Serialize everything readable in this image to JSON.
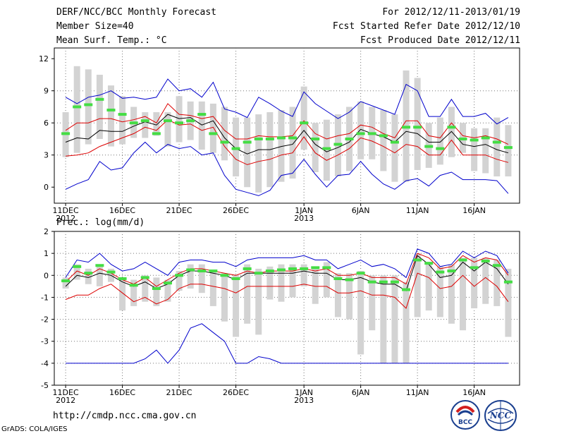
{
  "header": {
    "title": "DERF/NCC/BCC Monthly Forecast",
    "member": "Member Size=40",
    "variable": "Mean Surf. Temp.: °C",
    "period": "For 2012/12/11-2013/01/19",
    "started": "Fcst Started Refer Date 2012/12/10",
    "produced": "Fcst Produced Date 2012/12/11"
  },
  "precip_label": "Prec.: log(mm/d)",
  "footer": {
    "url": "http://cmdp.ncc.cma.gov.cn",
    "credit": "GrADS: COLA/IGES"
  },
  "logos": {
    "bcc": "BCC",
    "ncc": "NCC"
  },
  "colors": {
    "box": "#d3d3d3",
    "green": "#44dd44",
    "blue": "#0000cc",
    "red": "#dd0000",
    "mean": "#000000",
    "grid": "#777777"
  },
  "chart_data": [
    {
      "type": "box",
      "title": "Mean Surf. Temp.: °C",
      "ylim": [
        -1.5,
        13
      ],
      "yticks": [
        0,
        3,
        6,
        9,
        12
      ],
      "xticks": [
        {
          "day": 1,
          "label": "11DEC",
          "sub": "2012"
        },
        {
          "day": 6,
          "label": "16DEC",
          "sub": ""
        },
        {
          "day": 11,
          "label": "21DEC",
          "sub": ""
        },
        {
          "day": 16,
          "label": "26DEC",
          "sub": ""
        },
        {
          "day": 22,
          "label": "1JAN",
          "sub": "2013"
        },
        {
          "day": 27,
          "label": "6JAN",
          "sub": ""
        },
        {
          "day": 32,
          "label": "11JAN",
          "sub": ""
        },
        {
          "day": 37,
          "label": "16JAN",
          "sub": ""
        }
      ],
      "box_low": [
        2.8,
        3.2,
        4.0,
        4.5,
        3.8,
        4.0,
        4.6,
        4.6,
        4.8,
        3.8,
        4.2,
        4.4,
        3.5,
        3.2,
        2.5,
        1.0,
        0.0,
        -0.5,
        0.0,
        0.5,
        0.8,
        3.5,
        1.4,
        0.6,
        1.0,
        1.5,
        2.6,
        2.6,
        1.5,
        0.5,
        0.5,
        1.6,
        1.8,
        2.1,
        2.8,
        3.2,
        1.5,
        1.3,
        1.0,
        1.0
      ],
      "box_high": [
        7.0,
        11.3,
        11.0,
        10.5,
        9.5,
        8.5,
        7.5,
        7.0,
        7.0,
        7.0,
        8.5,
        8.0,
        8.0,
        7.8,
        7.5,
        6.5,
        6.5,
        6.8,
        7.0,
        7.2,
        7.5,
        9.4,
        6.0,
        6.3,
        6.8,
        7.5,
        8.0,
        7.5,
        7.2,
        6.8,
        10.9,
        10.2,
        6.0,
        6.5,
        7.5,
        6.0,
        5.5,
        5.5,
        6.5,
        5.8
      ],
      "green": [
        5.0,
        7.5,
        7.7,
        8.2,
        7.2,
        6.8,
        6.0,
        6.2,
        5.0,
        6.2,
        6.0,
        6.2,
        6.8,
        5.0,
        4.2,
        3.6,
        4.2,
        4.5,
        4.5,
        4.6,
        4.6,
        6.0,
        4.5,
        3.6,
        4.0,
        4.5,
        5.0,
        5.0,
        4.8,
        4.2,
        5.6,
        5.6,
        3.8,
        3.6,
        5.6,
        4.5,
        4.4,
        4.6,
        4.2,
        3.7
      ],
      "max": [
        8.4,
        7.8,
        8.4,
        8.6,
        9.0,
        8.3,
        8.4,
        8.2,
        8.4,
        10.1,
        9.0,
        9.2,
        8.4,
        9.8,
        7.3,
        7.0,
        6.5,
        8.4,
        7.8,
        7.1,
        6.6,
        8.9,
        7.8,
        7.1,
        6.4,
        7.0,
        8.0,
        7.6,
        7.2,
        6.8,
        9.6,
        9.0,
        6.6,
        6.6,
        8.2,
        6.6,
        6.6,
        6.9,
        5.9,
        6.5
      ],
      "upper": [
        5.3,
        6.0,
        6.0,
        6.4,
        6.4,
        6.1,
        6.3,
        6.6,
        6.0,
        7.8,
        6.8,
        6.7,
        6.4,
        6.6,
        5.3,
        4.5,
        4.5,
        4.8,
        4.7,
        4.7,
        4.8,
        6.2,
        5.0,
        4.5,
        4.8,
        5.0,
        5.8,
        5.6,
        5.0,
        4.6,
        6.2,
        6.2,
        4.8,
        4.6,
        6.0,
        4.8,
        4.6,
        4.8,
        4.5,
        4.0
      ],
      "mean": [
        4.2,
        4.6,
        4.5,
        5.3,
        5.2,
        5.2,
        5.7,
        6.1,
        5.8,
        6.8,
        6.4,
        6.5,
        5.8,
        6.2,
        4.6,
        3.6,
        3.1,
        3.5,
        3.5,
        3.8,
        4.0,
        5.3,
        4.0,
        3.3,
        3.7,
        4.2,
        5.4,
        5.0,
        4.7,
        4.2,
        5.2,
        5.0,
        4.2,
        4.2,
        5.2,
        4.0,
        3.8,
        4.0,
        3.5,
        3.2
      ],
      "lower": [
        2.9,
        3.0,
        3.2,
        3.8,
        4.2,
        4.6,
        5.0,
        5.6,
        5.3,
        6.3,
        5.8,
        5.9,
        5.3,
        5.6,
        3.8,
        2.6,
        2.1,
        2.4,
        2.6,
        3.0,
        3.2,
        4.7,
        3.2,
        2.5,
        3.0,
        3.6,
        4.6,
        4.3,
        3.8,
        3.2,
        4.0,
        3.8,
        3.0,
        3.0,
        4.4,
        3.0,
        3.0,
        3.0,
        2.6,
        2.3
      ],
      "min": [
        -0.2,
        0.3,
        0.7,
        2.4,
        1.6,
        1.8,
        3.2,
        4.2,
        3.2,
        4.0,
        3.6,
        3.8,
        3.0,
        3.2,
        1.1,
        -0.2,
        -0.5,
        -0.8,
        -0.3,
        1.1,
        1.3,
        2.6,
        1.2,
        0.0,
        1.1,
        1.2,
        2.4,
        1.2,
        0.3,
        -0.2,
        0.6,
        0.8,
        0.1,
        1.1,
        1.4,
        0.7,
        0.7,
        0.7,
        0.6,
        -0.6
      ]
    },
    {
      "type": "box",
      "title": "Prec.: log(mm/d)",
      "ylim": [
        -5,
        2
      ],
      "yticks": [
        -5,
        -4,
        -3,
        -2,
        -1,
        0,
        1,
        2
      ],
      "xticks": [
        {
          "day": 1,
          "label": "11DEC",
          "sub": "2012"
        },
        {
          "day": 6,
          "label": "16DEC",
          "sub": ""
        },
        {
          "day": 11,
          "label": "21DEC",
          "sub": ""
        },
        {
          "day": 16,
          "label": "26DEC",
          "sub": ""
        },
        {
          "day": 22,
          "label": "1JAN",
          "sub": "2013"
        },
        {
          "day": 27,
          "label": "6JAN",
          "sub": ""
        },
        {
          "day": 32,
          "label": "11JAN",
          "sub": ""
        },
        {
          "day": 37,
          "label": "16JAN",
          "sub": ""
        }
      ],
      "box_low": [
        -0.6,
        -0.2,
        -0.4,
        -0.5,
        -0.3,
        -1.6,
        -1.4,
        -1.2,
        -1.4,
        -1.2,
        -0.7,
        -0.6,
        -0.8,
        -1.4,
        -2.1,
        -2.8,
        -2.2,
        -2.7,
        -1.1,
        -1.2,
        -1.0,
        -0.5,
        -1.3,
        -1.0,
        -1.9,
        -2.0,
        -3.6,
        -2.5,
        -4.0,
        -4.0,
        -4.0,
        -1.9,
        -1.6,
        -1.9,
        -2.2,
        -2.5,
        -1.5,
        -1.3,
        -1.4,
        -2.8
      ],
      "box_high": [
        -0.1,
        0.5,
        0.3,
        0.5,
        0.3,
        -0.1,
        -0.2,
        0.0,
        -0.1,
        -0.2,
        0.2,
        0.5,
        0.5,
        0.2,
        0.1,
        0.0,
        0.5,
        0.3,
        0.4,
        0.5,
        0.5,
        0.5,
        0.3,
        0.6,
        0.1,
        0.1,
        0.2,
        0.0,
        0.0,
        0.0,
        -0.3,
        1.0,
        0.5,
        0.4,
        0.5,
        0.8,
        0.8,
        0.8,
        0.7,
        0.3
      ],
      "green": [
        -0.25,
        0.4,
        0.1,
        0.45,
        0.15,
        -0.15,
        -0.45,
        -0.1,
        -0.6,
        -0.35,
        0.0,
        0.25,
        0.2,
        0.2,
        0.0,
        -0.15,
        0.3,
        0.1,
        0.2,
        0.25,
        0.3,
        0.3,
        0.35,
        0.35,
        -0.15,
        -0.2,
        0.1,
        -0.3,
        -0.3,
        -0.3,
        -0.65,
        0.7,
        0.55,
        0.15,
        0.2,
        0.7,
        0.35,
        0.65,
        0.45,
        -0.3
      ],
      "max": [
        -0.1,
        0.7,
        0.6,
        1.0,
        0.5,
        0.2,
        0.3,
        0.6,
        0.3,
        0.0,
        0.6,
        0.7,
        0.7,
        0.6,
        0.6,
        0.4,
        0.7,
        0.8,
        0.8,
        0.8,
        0.8,
        0.9,
        0.7,
        0.7,
        0.3,
        0.5,
        0.7,
        0.4,
        0.5,
        0.3,
        -0.1,
        1.2,
        1.0,
        0.4,
        0.5,
        1.1,
        0.8,
        1.1,
        0.9,
        0.1
      ],
      "upper": [
        -0.3,
        0.2,
        0.0,
        0.3,
        0.1,
        -0.2,
        -0.4,
        -0.1,
        -0.5,
        -0.2,
        0.1,
        0.3,
        0.3,
        0.2,
        0.1,
        0.0,
        0.2,
        0.1,
        0.2,
        0.2,
        0.2,
        0.3,
        0.2,
        0.3,
        0.0,
        0.0,
        0.1,
        -0.1,
        -0.1,
        -0.1,
        -0.4,
        1.0,
        0.8,
        0.3,
        0.4,
        0.9,
        0.6,
        0.8,
        0.7,
        0.0
      ],
      "mean": [
        -0.5,
        0.0,
        -0.1,
        0.1,
        0.0,
        -0.3,
        -0.5,
        -0.3,
        -0.6,
        -0.4,
        0.0,
        0.2,
        0.2,
        0.1,
        0.0,
        -0.2,
        0.1,
        0.1,
        0.1,
        0.1,
        0.1,
        0.2,
        0.1,
        0.1,
        -0.2,
        -0.2,
        -0.1,
        -0.3,
        -0.4,
        -0.4,
        -0.7,
        0.9,
        0.5,
        -0.1,
        0.0,
        0.6,
        0.2,
        0.6,
        0.3,
        -0.4
      ],
      "lower": [
        -1.1,
        -0.9,
        -0.9,
        -0.6,
        -0.4,
        -0.8,
        -1.2,
        -1.0,
        -1.3,
        -1.1,
        -0.6,
        -0.4,
        -0.4,
        -0.5,
        -0.6,
        -0.8,
        -0.5,
        -0.5,
        -0.5,
        -0.5,
        -0.5,
        -0.4,
        -0.5,
        -0.5,
        -0.8,
        -0.8,
        -0.7,
        -0.9,
        -0.9,
        -1.0,
        -1.5,
        0.1,
        -0.1,
        -0.6,
        -0.5,
        0.0,
        -0.5,
        -0.1,
        -0.5,
        -1.2
      ],
      "min": [
        -4.0,
        -4.0,
        -4.0,
        -4.0,
        -4.0,
        -4.0,
        -4.0,
        -3.8,
        -3.4,
        -4.0,
        -3.4,
        -2.4,
        -2.2,
        -2.6,
        -3.0,
        -4.0,
        -4.0,
        -3.7,
        -3.8,
        -4.0,
        -4.0,
        -4.0,
        -4.0,
        -4.0,
        -4.0,
        -4.0,
        -4.0,
        -4.0,
        -4.0,
        -4.0,
        -4.0,
        -4.0,
        -4.0,
        -4.0,
        -4.0,
        -4.0,
        -4.0,
        -4.0,
        -4.0,
        -4.0
      ]
    }
  ]
}
